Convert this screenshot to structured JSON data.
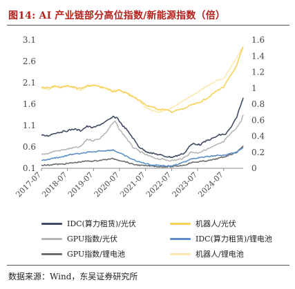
{
  "title": "图14:  AI 产业链部分高位指数/新能源指数（倍）",
  "source": "数据来源：Wind，东吴证券研究所",
  "chart_data": {
    "type": "line",
    "title": "AI 产业链部分高位指数/新能源指数（倍）",
    "xlabel": "",
    "x_axis": {
      "start": "2017-07",
      "end": "2025-04",
      "tick_labels": [
        "2017-07",
        "2018-07",
        "2019-07",
        "2020-07",
        "2021-07",
        "2022-07",
        "2023-07",
        "2024-07"
      ]
    },
    "left_axis": {
      "range": [
        0.1,
        3.1
      ],
      "ticks": [
        "0.1",
        "0.6",
        "1.1",
        "1.6",
        "2.1",
        "2.6",
        "3.1"
      ]
    },
    "right_axis": {
      "range": [
        0,
        1.6
      ],
      "ticks": [
        "0",
        "0.2",
        "0.4",
        "0.6",
        "0.8",
        "1",
        "1.2",
        "1.4",
        "1.6"
      ]
    },
    "grid": false,
    "legend_position": "bottom",
    "series": [
      {
        "name": "IDC(算力租赁)/光伏",
        "axis": "left",
        "color": "#3f4a63",
        "points": [
          [
            "2017-07",
            0.87
          ],
          [
            "2017-10",
            0.86
          ],
          [
            "2018-01",
            0.92
          ],
          [
            "2018-04",
            0.95
          ],
          [
            "2018-07",
            0.98
          ],
          [
            "2018-10",
            1.02
          ],
          [
            "2019-01",
            0.98
          ],
          [
            "2019-04",
            1.08
          ],
          [
            "2019-07",
            1.05
          ],
          [
            "2019-10",
            1.12
          ],
          [
            "2020-01",
            1.2
          ],
          [
            "2020-04",
            1.3
          ],
          [
            "2020-06",
            1.28
          ],
          [
            "2020-08",
            1.12
          ],
          [
            "2020-10",
            1.02
          ],
          [
            "2021-01",
            0.82
          ],
          [
            "2021-04",
            0.6
          ],
          [
            "2021-07",
            0.5
          ],
          [
            "2021-10",
            0.45
          ],
          [
            "2022-01",
            0.42
          ],
          [
            "2022-04",
            0.38
          ],
          [
            "2022-07",
            0.36
          ],
          [
            "2022-10",
            0.4
          ],
          [
            "2023-01",
            0.46
          ],
          [
            "2023-03",
            0.6
          ],
          [
            "2023-05",
            0.68
          ],
          [
            "2023-08",
            0.65
          ],
          [
            "2023-11",
            0.74
          ],
          [
            "2024-02",
            0.8
          ],
          [
            "2024-05",
            0.88
          ],
          [
            "2024-08",
            0.9
          ],
          [
            "2024-11",
            1.1
          ],
          [
            "2025-01",
            1.3
          ],
          [
            "2025-03",
            1.6
          ],
          [
            "2025-04",
            1.75
          ]
        ]
      },
      {
        "name": "机器人/光伏",
        "axis": "left",
        "color": "#f7d157",
        "points": [
          [
            "2017-07",
            2.0
          ],
          [
            "2017-10",
            1.98
          ],
          [
            "2018-01",
            2.02
          ],
          [
            "2018-04",
            1.99
          ],
          [
            "2018-07",
            2.03
          ],
          [
            "2018-10",
            2.0
          ],
          [
            "2019-01",
            1.96
          ],
          [
            "2019-04",
            2.02
          ],
          [
            "2019-07",
            2.04
          ],
          [
            "2019-10",
            2.0
          ],
          [
            "2020-01",
            1.96
          ],
          [
            "2020-04",
            1.9
          ],
          [
            "2020-07",
            1.92
          ],
          [
            "2020-10",
            1.86
          ],
          [
            "2021-01",
            1.78
          ],
          [
            "2021-04",
            1.7
          ],
          [
            "2021-07",
            1.58
          ],
          [
            "2021-10",
            1.53
          ],
          [
            "2022-01",
            1.48
          ],
          [
            "2022-04",
            1.47
          ],
          [
            "2022-07",
            1.42
          ],
          [
            "2022-10",
            1.46
          ],
          [
            "2023-01",
            1.5
          ],
          [
            "2023-04",
            1.58
          ],
          [
            "2023-07",
            1.62
          ],
          [
            "2023-10",
            1.7
          ],
          [
            "2024-01",
            1.8
          ],
          [
            "2024-04",
            1.92
          ],
          [
            "2024-07",
            2.0
          ],
          [
            "2024-10",
            2.25
          ],
          [
            "2025-01",
            2.5
          ],
          [
            "2025-03",
            2.8
          ],
          [
            "2025-04",
            2.93
          ]
        ]
      },
      {
        "name": "GPU指数/光伏",
        "axis": "left",
        "color": "#b6b6b6",
        "points": [
          [
            "2017-07",
            0.42
          ],
          [
            "2017-10",
            0.45
          ],
          [
            "2018-01",
            0.5
          ],
          [
            "2018-04",
            0.52
          ],
          [
            "2018-07",
            0.55
          ],
          [
            "2018-10",
            0.58
          ],
          [
            "2019-01",
            0.6
          ],
          [
            "2019-04",
            0.78
          ],
          [
            "2019-07",
            0.75
          ],
          [
            "2019-10",
            0.8
          ],
          [
            "2020-01",
            0.95
          ],
          [
            "2020-03",
            1.1
          ],
          [
            "2020-05",
            1.2
          ],
          [
            "2020-07",
            1.0
          ],
          [
            "2020-10",
            0.82
          ],
          [
            "2021-01",
            0.6
          ],
          [
            "2021-04",
            0.5
          ],
          [
            "2021-07",
            0.42
          ],
          [
            "2021-10",
            0.36
          ],
          [
            "2022-01",
            0.32
          ],
          [
            "2022-04",
            0.3
          ],
          [
            "2022-07",
            0.28
          ],
          [
            "2022-10",
            0.3
          ],
          [
            "2023-01",
            0.35
          ],
          [
            "2023-04",
            0.48
          ],
          [
            "2023-07",
            0.46
          ],
          [
            "2023-10",
            0.52
          ],
          [
            "2024-01",
            0.58
          ],
          [
            "2024-04",
            0.65
          ],
          [
            "2024-07",
            0.72
          ],
          [
            "2024-10",
            0.9
          ],
          [
            "2025-01",
            1.05
          ],
          [
            "2025-03",
            1.2
          ],
          [
            "2025-04",
            1.35
          ]
        ]
      },
      {
        "name": "IDC(算力租赁)/锂电池",
        "axis": "right",
        "color": "#5b8ec9",
        "points": [
          [
            "2017-07",
            0.1
          ],
          [
            "2017-10",
            0.11
          ],
          [
            "2018-01",
            0.13
          ],
          [
            "2018-04",
            0.14
          ],
          [
            "2018-07",
            0.16
          ],
          [
            "2018-10",
            0.18
          ],
          [
            "2019-01",
            0.18
          ],
          [
            "2019-04",
            0.2
          ],
          [
            "2019-07",
            0.2
          ],
          [
            "2019-10",
            0.22
          ],
          [
            "2020-01",
            0.22
          ],
          [
            "2020-04",
            0.23
          ],
          [
            "2020-07",
            0.19
          ],
          [
            "2020-10",
            0.15
          ],
          [
            "2021-01",
            0.11
          ],
          [
            "2021-04",
            0.08
          ],
          [
            "2021-07",
            0.06
          ],
          [
            "2021-10",
            0.04
          ],
          [
            "2022-01",
            0.04
          ],
          [
            "2022-04",
            0.03
          ],
          [
            "2022-07",
            0.03
          ],
          [
            "2022-10",
            0.05
          ],
          [
            "2023-01",
            0.08
          ],
          [
            "2023-04",
            0.12
          ],
          [
            "2023-07",
            0.13
          ],
          [
            "2023-10",
            0.14
          ],
          [
            "2024-01",
            0.15
          ],
          [
            "2024-04",
            0.16
          ],
          [
            "2024-07",
            0.16
          ],
          [
            "2024-10",
            0.18
          ],
          [
            "2025-01",
            0.2
          ],
          [
            "2025-03",
            0.24
          ],
          [
            "2025-04",
            0.26
          ]
        ]
      },
      {
        "name": "GPU指数/锂电池",
        "axis": "right",
        "color": "#6b6b6b",
        "points": [
          [
            "2017-07",
            0.04
          ],
          [
            "2017-10",
            0.04
          ],
          [
            "2018-01",
            0.05
          ],
          [
            "2018-04",
            0.05
          ],
          [
            "2018-07",
            0.06
          ],
          [
            "2018-10",
            0.07
          ],
          [
            "2019-01",
            0.08
          ],
          [
            "2019-04",
            0.09
          ],
          [
            "2019-07",
            0.09
          ],
          [
            "2019-10",
            0.1
          ],
          [
            "2020-01",
            0.11
          ],
          [
            "2020-04",
            0.12
          ],
          [
            "2020-07",
            0.1
          ],
          [
            "2020-10",
            0.08
          ],
          [
            "2021-01",
            0.05
          ],
          [
            "2021-04",
            0.04
          ],
          [
            "2021-07",
            0.03
          ],
          [
            "2021-10",
            0.03
          ],
          [
            "2022-01",
            0.02
          ],
          [
            "2022-04",
            0.02
          ],
          [
            "2022-07",
            0.02
          ],
          [
            "2022-10",
            0.03
          ],
          [
            "2023-01",
            0.04
          ],
          [
            "2023-04",
            0.07
          ],
          [
            "2023-07",
            0.08
          ],
          [
            "2023-10",
            0.09
          ],
          [
            "2024-01",
            0.1
          ],
          [
            "2024-04",
            0.12
          ],
          [
            "2024-07",
            0.14
          ],
          [
            "2024-10",
            0.17
          ],
          [
            "2025-01",
            0.2
          ],
          [
            "2025-03",
            0.25
          ],
          [
            "2025-04",
            0.28
          ]
        ]
      },
      {
        "name": "机器人/锂电池",
        "axis": "right",
        "color": "#fbe9b2",
        "points": [
          [
            "2017-07",
            1.0
          ],
          [
            "2017-10",
            0.98
          ],
          [
            "2018-01",
            1.02
          ],
          [
            "2018-04",
            1.0
          ],
          [
            "2018-07",
            1.03
          ],
          [
            "2018-10",
            1.0
          ],
          [
            "2019-01",
            0.97
          ],
          [
            "2019-04",
            1.02
          ],
          [
            "2019-07",
            1.04
          ],
          [
            "2019-10",
            1.02
          ],
          [
            "2020-01",
            1.0
          ],
          [
            "2020-04",
            0.97
          ],
          [
            "2020-07",
            0.98
          ],
          [
            "2020-10",
            0.95
          ],
          [
            "2021-01",
            0.9
          ],
          [
            "2021-04",
            0.84
          ],
          [
            "2021-07",
            0.76
          ],
          [
            "2021-10",
            0.72
          ],
          [
            "2022-01",
            0.7
          ],
          [
            "2022-04",
            0.72
          ],
          [
            "2022-07",
            0.75
          ],
          [
            "2022-10",
            0.8
          ],
          [
            "2023-01",
            0.85
          ],
          [
            "2023-04",
            0.9
          ],
          [
            "2023-07",
            0.95
          ],
          [
            "2023-10",
            1.0
          ],
          [
            "2024-01",
            1.05
          ],
          [
            "2024-04",
            1.1
          ],
          [
            "2024-07",
            1.12
          ],
          [
            "2024-10",
            1.25
          ],
          [
            "2025-01",
            1.38
          ],
          [
            "2025-03",
            1.48
          ],
          [
            "2025-04",
            1.52
          ]
        ]
      }
    ]
  }
}
